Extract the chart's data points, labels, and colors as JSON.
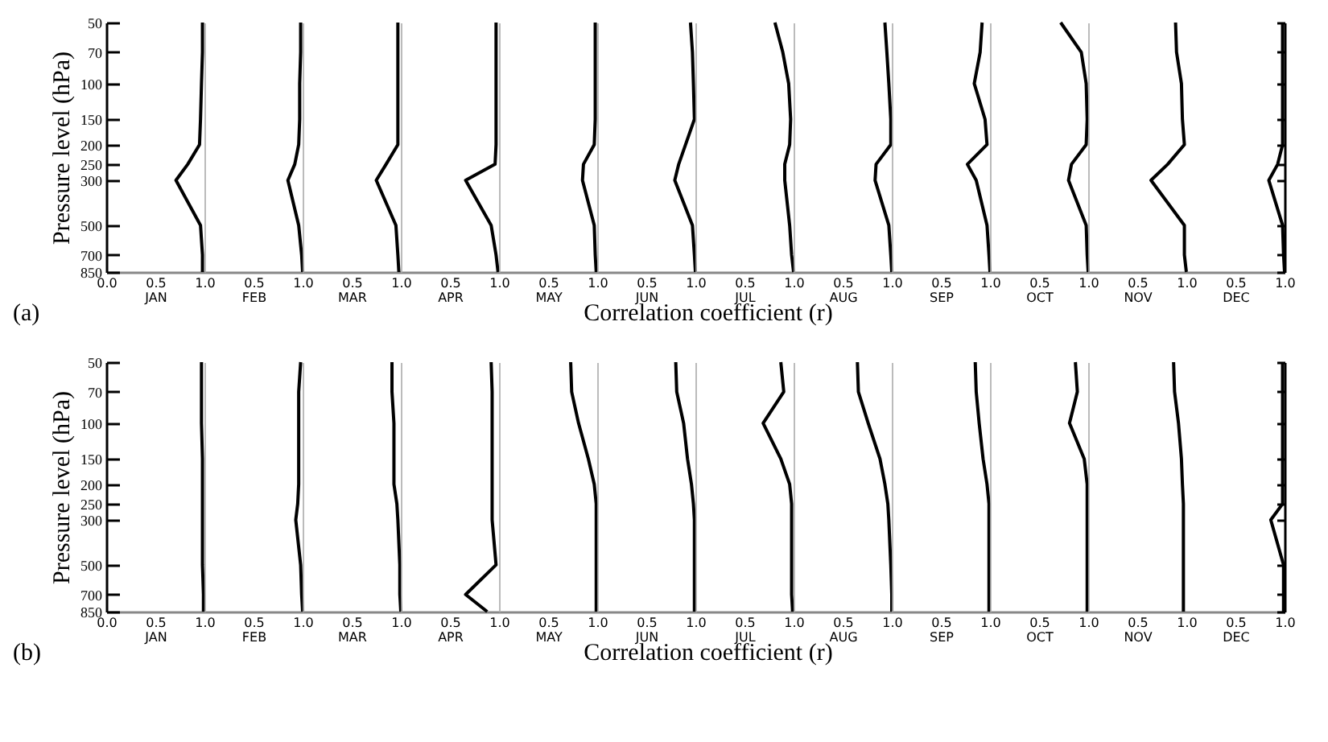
{
  "chart_data": [
    {
      "type": "line",
      "xlabel": "JAN",
      "ylabel": "Pressure level (hPa)",
      "annotations": [
        "(a)",
        "Correlation coefficient (r)"
      ],
      "x": [
        0.98,
        0.98,
        0.97,
        0.96,
        0.95,
        0.83,
        0.71,
        0.96,
        0.98,
        0.98
      ],
      "values": [
        50,
        70,
        100,
        150,
        200,
        250,
        300,
        500,
        700,
        850
      ],
      "color": "#000000",
      "log": "y",
      "xlim": [
        0,
        1
      ],
      "xticks": [
        {
          "value": 0,
          "label": "0.0"
        },
        {
          "value": 0.5,
          "label": "0.5"
        },
        {
          "value": 1,
          "label": "1.0"
        }
      ],
      "ylim": [
        850,
        50
      ],
      "yticks": [
        50,
        70,
        100,
        150,
        200,
        250,
        300,
        500,
        700,
        850
      ]
    },
    {
      "type": "line",
      "xlabel": "FEB",
      "x": [
        0.98,
        0.98,
        0.97,
        0.97,
        0.96,
        0.92,
        0.85,
        0.96,
        0.99,
        1.0
      ],
      "values": [
        50,
        70,
        100,
        150,
        200,
        250,
        300,
        500,
        700,
        850
      ],
      "color": "#000000",
      "log": "y",
      "xlim": [
        0,
        1
      ],
      "xticks": [
        {
          "value": 0.5,
          "label": "0.5"
        },
        {
          "value": 1,
          "label": "1.0"
        }
      ],
      "ylim": [
        850,
        50
      ],
      "yticks": [
        50,
        70,
        100,
        150,
        200,
        250,
        300,
        500,
        700,
        850
      ],
      "tick_labels": "x"
    },
    {
      "type": "line",
      "xlabel": "MAR",
      "x": [
        0.97,
        0.97,
        0.97,
        0.97,
        0.97,
        0.85,
        0.75,
        0.95,
        0.97,
        0.98
      ],
      "values": [
        50,
        70,
        100,
        150,
        200,
        250,
        300,
        500,
        700,
        850
      ],
      "color": "#000000",
      "log": "y",
      "xlim": [
        0,
        1
      ],
      "xticks": [
        {
          "value": 0.5,
          "label": "0.5"
        },
        {
          "value": 1,
          "label": "1.0"
        }
      ],
      "ylim": [
        850,
        50
      ],
      "yticks": [
        50,
        70,
        100,
        150,
        200,
        250,
        300,
        500,
        700,
        850
      ],
      "tick_labels": "x"
    },
    {
      "type": "line",
      "xlabel": "APR",
      "x": [
        0.97,
        0.97,
        0.97,
        0.97,
        0.97,
        0.96,
        0.66,
        0.92,
        0.97,
        0.99
      ],
      "values": [
        50,
        70,
        100,
        150,
        200,
        250,
        300,
        500,
        700,
        850
      ],
      "color": "#000000",
      "log": "y",
      "xlim": [
        0,
        1
      ],
      "xticks": [
        {
          "value": 0.5,
          "label": "0.5"
        },
        {
          "value": 1,
          "label": "1.0"
        }
      ],
      "ylim": [
        850,
        50
      ],
      "yticks": [
        50,
        70,
        100,
        150,
        200,
        250,
        300,
        500,
        700,
        850
      ],
      "tick_labels": "x"
    },
    {
      "type": "line",
      "xlabel": "MAY",
      "x": [
        0.98,
        0.98,
        0.98,
        0.98,
        0.97,
        0.86,
        0.85,
        0.97,
        0.98,
        0.99
      ],
      "values": [
        50,
        70,
        100,
        150,
        200,
        250,
        300,
        500,
        700,
        850
      ],
      "color": "#000000",
      "log": "y",
      "xlim": [
        0,
        1
      ],
      "xticks": [
        {
          "value": 0.5,
          "label": "0.5"
        },
        {
          "value": 1,
          "label": "1.0"
        }
      ],
      "ylim": [
        850,
        50
      ],
      "yticks": [
        50,
        70,
        100,
        150,
        200,
        250,
        300,
        500,
        700,
        850
      ],
      "tick_labels": "x"
    },
    {
      "type": "line",
      "xlabel": "JUN",
      "x": [
        0.95,
        0.97,
        0.98,
        0.99,
        0.9,
        0.83,
        0.79,
        0.97,
        0.99,
        1.0
      ],
      "values": [
        50,
        70,
        100,
        150,
        200,
        250,
        300,
        500,
        700,
        850
      ],
      "color": "#000000",
      "log": "y",
      "xlim": [
        0,
        1
      ],
      "xticks": [
        {
          "value": 0.5,
          "label": "0.5"
        },
        {
          "value": 1,
          "label": "1.0"
        }
      ],
      "ylim": [
        850,
        50
      ],
      "yticks": [
        50,
        70,
        100,
        150,
        200,
        250,
        300,
        500,
        700,
        850
      ],
      "tick_labels": "x"
    },
    {
      "type": "line",
      "xlabel": "JUL",
      "x": [
        0.81,
        0.89,
        0.95,
        0.97,
        0.96,
        0.91,
        0.91,
        0.96,
        0.98,
        1.0
      ],
      "values": [
        50,
        70,
        100,
        150,
        200,
        250,
        300,
        500,
        700,
        850
      ],
      "color": "#000000",
      "log": "y",
      "xlim": [
        0,
        1
      ],
      "xticks": [
        {
          "value": 0.5,
          "label": "0.5"
        },
        {
          "value": 1,
          "label": "1.0"
        }
      ],
      "ylim": [
        850,
        50
      ],
      "yticks": [
        50,
        70,
        100,
        150,
        200,
        250,
        300,
        500,
        700,
        850
      ],
      "tick_labels": "x"
    },
    {
      "type": "line",
      "xlabel": "AUG",
      "x": [
        0.93,
        0.95,
        0.97,
        0.99,
        0.99,
        0.84,
        0.83,
        0.97,
        0.99,
        1.0
      ],
      "values": [
        50,
        70,
        100,
        150,
        200,
        250,
        300,
        500,
        700,
        850
      ],
      "color": "#000000",
      "log": "y",
      "xlim": [
        0,
        1
      ],
      "xticks": [
        {
          "value": 0.5,
          "label": "0.5"
        },
        {
          "value": 1,
          "label": "1.0"
        }
      ],
      "ylim": [
        850,
        50
      ],
      "yticks": [
        50,
        70,
        100,
        150,
        200,
        250,
        300,
        500,
        700,
        850
      ],
      "tick_labels": "x"
    },
    {
      "type": "line",
      "xlabel": "SEP",
      "x": [
        0.92,
        0.9,
        0.84,
        0.95,
        0.97,
        0.77,
        0.86,
        0.97,
        0.99,
        1.0
      ],
      "values": [
        50,
        70,
        100,
        150,
        200,
        250,
        300,
        500,
        700,
        850
      ],
      "color": "#000000",
      "log": "y",
      "xlim": [
        0,
        1
      ],
      "xticks": [
        {
          "value": 0.5,
          "label": "0.5"
        },
        {
          "value": 1,
          "label": "1.0"
        }
      ],
      "ylim": [
        850,
        50
      ],
      "yticks": [
        50,
        70,
        100,
        150,
        200,
        250,
        300,
        500,
        700,
        850
      ],
      "tick_labels": "x"
    },
    {
      "type": "line",
      "xlabel": "OCT",
      "x": [
        0.72,
        0.93,
        0.98,
        0.99,
        0.98,
        0.83,
        0.8,
        0.98,
        0.99,
        1.0
      ],
      "values": [
        50,
        70,
        100,
        150,
        200,
        250,
        300,
        500,
        700,
        850
      ],
      "color": "#000000",
      "log": "y",
      "xlim": [
        0,
        1
      ],
      "xticks": [
        {
          "value": 0.5,
          "label": "0.5"
        },
        {
          "value": 1,
          "label": "1.0"
        }
      ],
      "ylim": [
        850,
        50
      ],
      "yticks": [
        50,
        70,
        100,
        150,
        200,
        250,
        300,
        500,
        700,
        850
      ],
      "tick_labels": "x"
    },
    {
      "type": "line",
      "xlabel": "NOV",
      "x": [
        0.89,
        0.9,
        0.95,
        0.96,
        0.98,
        0.81,
        0.64,
        0.98,
        0.98,
        1.0
      ],
      "values": [
        50,
        70,
        100,
        150,
        200,
        250,
        300,
        500,
        700,
        850
      ],
      "color": "#000000",
      "log": "y",
      "xlim": [
        0,
        1
      ],
      "xticks": [
        {
          "value": 0.5,
          "label": "0.5"
        },
        {
          "value": 1,
          "label": "1.0"
        }
      ],
      "ylim": [
        850,
        50
      ],
      "yticks": [
        50,
        70,
        100,
        150,
        200,
        250,
        300,
        500,
        700,
        850
      ],
      "tick_labels": "x"
    },
    {
      "type": "line",
      "xlabel": "DEC",
      "x": [
        0.98,
        0.98,
        0.98,
        0.98,
        0.98,
        0.93,
        0.84,
        0.98,
        0.99,
        1.0
      ],
      "values": [
        50,
        70,
        100,
        150,
        200,
        250,
        300,
        500,
        700,
        850
      ],
      "color": "#000000",
      "log": "y",
      "xlim": [
        0,
        1
      ],
      "xticks": [
        {
          "value": 0.5,
          "label": "0.5"
        },
        {
          "value": 1,
          "label": "1.0"
        }
      ],
      "ylim": [
        850,
        50
      ],
      "yticks": [
        50,
        70,
        100,
        150,
        200,
        250,
        300,
        500,
        700,
        850
      ],
      "tick_labels": "x"
    },
    {
      "type": "line",
      "xlabel": "JAN",
      "ylabel": "Pressure level (hPa)",
      "annotations": [
        "(b)",
        "Correlation coefficient (r)"
      ],
      "x": [
        0.97,
        0.97,
        0.97,
        0.98,
        0.98,
        0.98,
        0.98,
        0.98,
        0.99,
        0.99
      ],
      "values": [
        50,
        70,
        100,
        150,
        200,
        250,
        300,
        500,
        700,
        850
      ],
      "color": "#000000",
      "log": "y",
      "xlim": [
        0,
        1
      ],
      "xticks": [
        {
          "value": 0,
          "label": "0.0"
        },
        {
          "value": 0.5,
          "label": "0.5"
        },
        {
          "value": 1,
          "label": "1.0"
        }
      ],
      "ylim": [
        850,
        50
      ],
      "yticks": [
        50,
        70,
        100,
        150,
        200,
        250,
        300,
        500,
        700,
        850
      ]
    },
    {
      "type": "line",
      "xlabel": "FEB",
      "x": [
        0.98,
        0.96,
        0.96,
        0.96,
        0.96,
        0.95,
        0.93,
        0.98,
        0.99,
        1.0
      ],
      "values": [
        50,
        70,
        100,
        150,
        200,
        250,
        300,
        500,
        700,
        850
      ],
      "color": "#000000",
      "log": "y",
      "xlim": [
        0,
        1
      ],
      "xticks": [
        {
          "value": 0.5,
          "label": "0.5"
        },
        {
          "value": 1,
          "label": "1.0"
        }
      ],
      "ylim": [
        850,
        50
      ],
      "yticks": [
        50,
        70,
        100,
        150,
        200,
        250,
        300,
        500,
        700,
        850
      ],
      "tick_labels": "x"
    },
    {
      "type": "line",
      "xlabel": "MAR",
      "x": [
        0.91,
        0.91,
        0.93,
        0.93,
        0.93,
        0.96,
        0.97,
        0.99,
        0.99,
        1.0
      ],
      "values": [
        50,
        70,
        100,
        150,
        200,
        250,
        300,
        500,
        700,
        850
      ],
      "color": "#000000",
      "log": "y",
      "xlim": [
        0,
        1
      ],
      "xticks": [
        {
          "value": 0.5,
          "label": "0.5"
        },
        {
          "value": 1,
          "label": "1.0"
        }
      ],
      "ylim": [
        850,
        50
      ],
      "yticks": [
        50,
        70,
        100,
        150,
        200,
        250,
        300,
        500,
        700,
        850
      ],
      "tick_labels": "x"
    },
    {
      "type": "line",
      "xlabel": "APR",
      "x": [
        0.92,
        0.93,
        0.93,
        0.93,
        0.93,
        0.93,
        0.93,
        0.97,
        0.66,
        0.88
      ],
      "values": [
        50,
        70,
        100,
        150,
        200,
        250,
        300,
        500,
        700,
        850
      ],
      "color": "#000000",
      "log": "y",
      "xlim": [
        0,
        1
      ],
      "xticks": [
        {
          "value": 0.5,
          "label": "0.5"
        },
        {
          "value": 1,
          "label": "1.0"
        }
      ],
      "ylim": [
        850,
        50
      ],
      "yticks": [
        50,
        70,
        100,
        150,
        200,
        250,
        300,
        500,
        700,
        850
      ],
      "tick_labels": "x"
    },
    {
      "type": "line",
      "xlabel": "MAY",
      "x": [
        0.73,
        0.74,
        0.81,
        0.91,
        0.97,
        0.99,
        0.99,
        0.99,
        0.99,
        0.99
      ],
      "values": [
        50,
        70,
        100,
        150,
        200,
        250,
        300,
        500,
        700,
        850
      ],
      "color": "#000000",
      "log": "y",
      "xlim": [
        0,
        1
      ],
      "xticks": [
        {
          "value": 0.5,
          "label": "0.5"
        },
        {
          "value": 1,
          "label": "1.0"
        }
      ],
      "ylim": [
        850,
        50
      ],
      "yticks": [
        50,
        70,
        100,
        150,
        200,
        250,
        300,
        500,
        700,
        850
      ],
      "tick_labels": "x"
    },
    {
      "type": "line",
      "xlabel": "JUN",
      "x": [
        0.8,
        0.81,
        0.88,
        0.92,
        0.96,
        0.98,
        0.99,
        0.99,
        0.99,
        0.99
      ],
      "values": [
        50,
        70,
        100,
        150,
        200,
        250,
        300,
        500,
        700,
        850
      ],
      "color": "#000000",
      "log": "y",
      "xlim": [
        0,
        1
      ],
      "xticks": [
        {
          "value": 0.5,
          "label": "0.5"
        },
        {
          "value": 1,
          "label": "1.0"
        }
      ],
      "ylim": [
        850,
        50
      ],
      "yticks": [
        50,
        70,
        100,
        150,
        200,
        250,
        300,
        500,
        700,
        850
      ],
      "tick_labels": "x"
    },
    {
      "type": "line",
      "xlabel": "JUL",
      "x": [
        0.87,
        0.9,
        0.69,
        0.87,
        0.96,
        0.98,
        0.98,
        0.98,
        0.98,
        0.99
      ],
      "values": [
        50,
        70,
        100,
        150,
        200,
        250,
        300,
        500,
        700,
        850
      ],
      "color": "#000000",
      "log": "y",
      "xlim": [
        0,
        1
      ],
      "xticks": [
        {
          "value": 0.5,
          "label": "0.5"
        },
        {
          "value": 1,
          "label": "1.0"
        }
      ],
      "ylim": [
        850,
        50
      ],
      "yticks": [
        50,
        70,
        100,
        150,
        200,
        250,
        300,
        500,
        700,
        850
      ],
      "tick_labels": "x"
    },
    {
      "type": "line",
      "xlabel": "AUG",
      "x": [
        0.65,
        0.66,
        0.76,
        0.88,
        0.93,
        0.96,
        0.97,
        0.99,
        1.0,
        1.0
      ],
      "values": [
        50,
        70,
        100,
        150,
        200,
        250,
        300,
        500,
        700,
        850
      ],
      "color": "#000000",
      "log": "y",
      "xlim": [
        0,
        1
      ],
      "xticks": [
        {
          "value": 0.5,
          "label": "0.5"
        },
        {
          "value": 1,
          "label": "1.0"
        }
      ],
      "ylim": [
        850,
        50
      ],
      "yticks": [
        50,
        70,
        100,
        150,
        200,
        250,
        300,
        500,
        700,
        850
      ],
      "tick_labels": "x"
    },
    {
      "type": "line",
      "xlabel": "SEP",
      "x": [
        0.85,
        0.86,
        0.89,
        0.93,
        0.97,
        0.99,
        0.99,
        0.99,
        0.99,
        0.99
      ],
      "values": [
        50,
        70,
        100,
        150,
        200,
        250,
        300,
        500,
        700,
        850
      ],
      "color": "#000000",
      "log": "y",
      "xlim": [
        0,
        1
      ],
      "xticks": [
        {
          "value": 0.5,
          "label": "0.5"
        },
        {
          "value": 1,
          "label": "1.0"
        }
      ],
      "ylim": [
        850,
        50
      ],
      "yticks": [
        50,
        70,
        100,
        150,
        200,
        250,
        300,
        500,
        700,
        850
      ],
      "tick_labels": "x"
    },
    {
      "type": "line",
      "xlabel": "OCT",
      "x": [
        0.87,
        0.89,
        0.81,
        0.96,
        0.99,
        0.99,
        0.99,
        0.99,
        0.99,
        0.99
      ],
      "values": [
        50,
        70,
        100,
        150,
        200,
        250,
        300,
        500,
        700,
        850
      ],
      "color": "#000000",
      "log": "y",
      "xlim": [
        0,
        1
      ],
      "xticks": [
        {
          "value": 0.5,
          "label": "0.5"
        },
        {
          "value": 1,
          "label": "1.0"
        }
      ],
      "ylim": [
        850,
        50
      ],
      "yticks": [
        50,
        70,
        100,
        150,
        200,
        250,
        300,
        500,
        700,
        850
      ],
      "tick_labels": "x"
    },
    {
      "type": "line",
      "xlabel": "NOV",
      "x": [
        0.87,
        0.88,
        0.92,
        0.95,
        0.96,
        0.97,
        0.97,
        0.97,
        0.97,
        0.97
      ],
      "values": [
        50,
        70,
        100,
        150,
        200,
        250,
        300,
        500,
        700,
        850
      ],
      "color": "#000000",
      "log": "y",
      "xlim": [
        0,
        1
      ],
      "xticks": [
        {
          "value": 0.5,
          "label": "0.5"
        },
        {
          "value": 1,
          "label": "1.0"
        }
      ],
      "ylim": [
        850,
        50
      ],
      "yticks": [
        50,
        70,
        100,
        150,
        200,
        250,
        300,
        500,
        700,
        850
      ],
      "tick_labels": "x"
    },
    {
      "type": "line",
      "xlabel": "DEC",
      "x": [
        0.98,
        0.98,
        0.98,
        0.98,
        0.98,
        0.98,
        0.86,
        0.99,
        0.99,
        0.99
      ],
      "values": [
        50,
        70,
        100,
        150,
        200,
        250,
        300,
        500,
        700,
        850
      ],
      "color": "#000000",
      "log": "y",
      "xlim": [
        0,
        1
      ],
      "xticks": [
        {
          "value": 0.5,
          "label": "0.5"
        },
        {
          "value": 1,
          "label": "1.0"
        }
      ],
      "ylim": [
        850,
        50
      ],
      "yticks": [
        50,
        70,
        100,
        150,
        200,
        250,
        300,
        500,
        700,
        850
      ],
      "tick_labels": "x"
    }
  ]
}
